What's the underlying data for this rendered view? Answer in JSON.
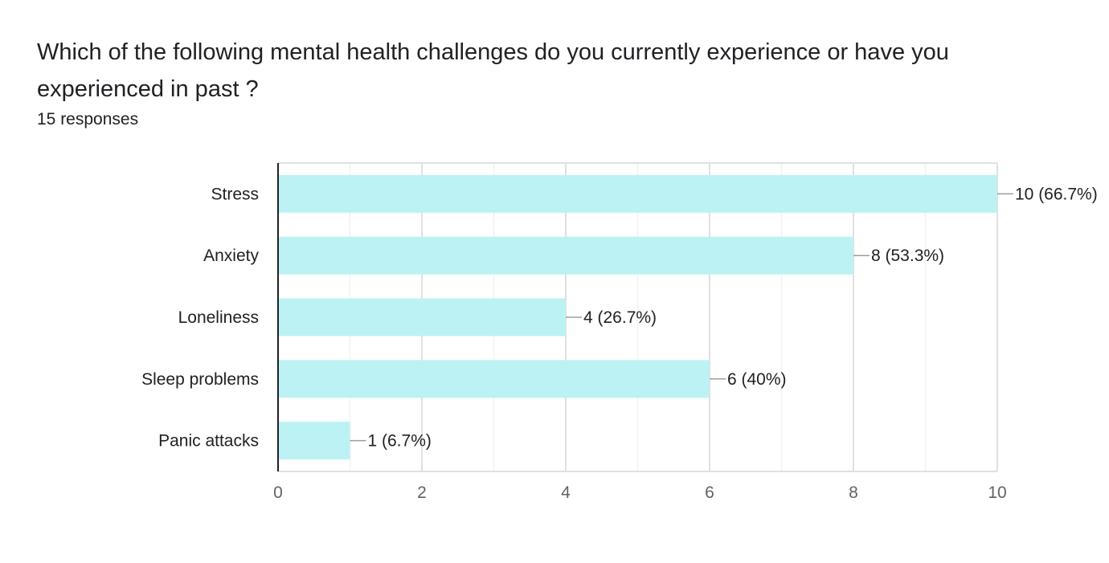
{
  "question": {
    "title": "Which of the following mental health challenges do you currently experience or have you experienced in past ?",
    "responses": "15 responses"
  },
  "colors": {
    "bar": "#bcf2f4",
    "axis": "#202124",
    "grid_major": "#e0e0e0",
    "grid_minor": "#f1f1f1",
    "leader": "#9e9e9e",
    "text": "#202124",
    "tick_text": "#5f6368"
  },
  "chart_data": {
    "type": "bar",
    "orientation": "horizontal",
    "categories": [
      "Stress",
      "Anxiety",
      "Loneliness",
      "Sleep problems",
      "Panic attacks"
    ],
    "values": [
      10,
      8,
      4,
      6,
      1
    ],
    "data_labels": [
      "10 (66.7%)",
      "8 (53.3%)",
      "4 (26.7%)",
      "6 (40%)",
      "1 (6.7%)"
    ],
    "xlim": [
      0,
      10
    ],
    "xticks": [
      0,
      2,
      4,
      6,
      8,
      10
    ],
    "xtick_labels": [
      "0",
      "2",
      "4",
      "6",
      "8",
      "10"
    ],
    "minor_ticks": [
      1,
      3,
      5,
      7,
      9
    ],
    "grid": true,
    "legend": "none"
  }
}
